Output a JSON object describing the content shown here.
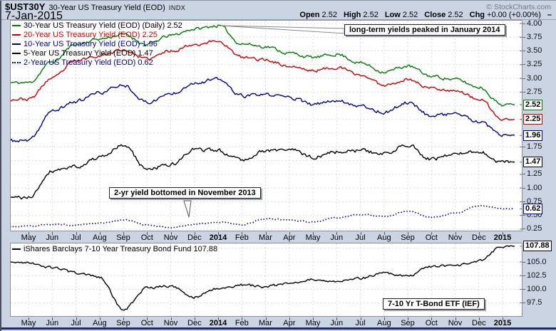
{
  "header": {
    "symbol": "$UST30Y",
    "title": "30-Year US Treasury Yield (EOD)",
    "exchange": "INDX",
    "date": "7-Jan-2015",
    "copyright": "© StockCharts.com",
    "quote": [
      {
        "label": "Open",
        "value": "2.52"
      },
      {
        "label": "High",
        "value": "2.52"
      },
      {
        "label": "Low",
        "value": "2.52"
      },
      {
        "label": "Close",
        "value": "2.52"
      },
      {
        "label": "Chg",
        "value": "+0.00 (+0.00%)"
      }
    ],
    "chg_dash": "–"
  },
  "annotations": {
    "peak": "long-term yields peaked in January 2014",
    "bottom": "2-yr yield bottomed in November 2013",
    "etf": "7-10 Yr T-Bond ETF (IEF)"
  },
  "colors": {
    "green": "#007a00",
    "red": "#cc0000",
    "navy": "#000090",
    "black": "#000000",
    "grid": "#d8d8e2",
    "frame": "#8e8e98",
    "outer_bg": "#cbd4e2",
    "plot_bg": "#ffffff",
    "bottom_bar": "#1f2a6e",
    "copyright_gray": "#6e7888"
  },
  "chart_data": [
    {
      "type": "line",
      "title": "US Treasury Yields (EOD) daily, May 2013 - Jan 2015",
      "x_categories": [
        "May",
        "Jun",
        "Jul",
        "Aug",
        "Sep",
        "Oct",
        "Nov",
        "Dec",
        "2014",
        "Feb",
        "Mar",
        "Apr",
        "May",
        "Jun",
        "Jul",
        "Aug",
        "Sep",
        "Oct",
        "Nov",
        "Dec",
        "2015"
      ],
      "ylim": [
        0.21,
        4.065
      ],
      "grid": true,
      "legend_position": "top-left",
      "yticks_plain": [
        "4.00",
        "3.75",
        "3.50",
        "3.25",
        "3.00",
        "2.75",
        "1.75",
        "1.25",
        "1.00",
        "0.75",
        "0.50",
        "0.25"
      ],
      "yticks_boxed": [
        {
          "text": "2.52",
          "color": "#007a00"
        },
        {
          "text": "2.25",
          "color": "#cc0000"
        },
        {
          "text": "1.96",
          "color": "#000090"
        },
        {
          "text": "1.47",
          "color": "#000000"
        },
        {
          "text": "0.62",
          "color": "#000090"
        }
      ],
      "series": [
        {
          "key": "yield-30y",
          "name": "30-Year US Treasury Yield (EOD) (Daily)",
          "last": "2.52",
          "color": "#007a00",
          "legend_color": "#000000",
          "style": "solid",
          "values": [
            2.92,
            3.3,
            3.62,
            3.72,
            3.8,
            3.62,
            3.78,
            3.9,
            3.96,
            3.63,
            3.58,
            3.46,
            3.38,
            3.44,
            3.28,
            3.12,
            3.22,
            3.04,
            2.98,
            2.84,
            2.52
          ]
        },
        {
          "key": "yield-20y",
          "name": "20-Year US Treasury Yield (EOD)",
          "last": "2.25",
          "color": "#cc0000",
          "legend_color": "#cc0000",
          "style": "solid",
          "values": [
            2.62,
            3.0,
            3.32,
            3.42,
            3.52,
            3.35,
            3.5,
            3.62,
            3.68,
            3.38,
            3.34,
            3.22,
            3.14,
            3.2,
            3.06,
            2.88,
            2.98,
            2.82,
            2.78,
            2.62,
            2.25
          ]
        },
        {
          "key": "yield-10y",
          "name": "10-Year US Treasury Yield (EOD)",
          "last": "1.96",
          "color": "#000090",
          "legend_color": "#000090",
          "style": "solid",
          "values": [
            1.86,
            2.4,
            2.58,
            2.74,
            2.88,
            2.56,
            2.72,
            2.92,
            2.98,
            2.68,
            2.7,
            2.66,
            2.52,
            2.6,
            2.5,
            2.38,
            2.56,
            2.32,
            2.36,
            2.2,
            1.96
          ]
        },
        {
          "key": "yield-5y",
          "name": "5-Year US Treasury Yield (EOD)",
          "last": "1.47",
          "color": "#000000",
          "legend_color": "#000000",
          "style": "solid",
          "values": [
            0.82,
            1.32,
            1.4,
            1.55,
            1.78,
            1.35,
            1.42,
            1.7,
            1.68,
            1.52,
            1.68,
            1.7,
            1.56,
            1.66,
            1.68,
            1.62,
            1.8,
            1.52,
            1.62,
            1.66,
            1.47
          ]
        },
        {
          "key": "yield-2y",
          "name": "2-Year US Treasury Yield (EOD)",
          "last": "0.62",
          "color": "#000090",
          "legend_color": "#000090",
          "style": "dotted",
          "values": [
            0.3,
            0.34,
            0.32,
            0.36,
            0.42,
            0.33,
            0.28,
            0.34,
            0.38,
            0.33,
            0.44,
            0.42,
            0.38,
            0.46,
            0.52,
            0.48,
            0.58,
            0.46,
            0.54,
            0.68,
            0.62
          ]
        }
      ]
    },
    {
      "type": "line",
      "title": "iShares Barclays 7-10 Year Treasury Bond Fund",
      "x_categories": [
        "May",
        "Jun",
        "Jul",
        "Aug",
        "Sep",
        "Oct",
        "Nov",
        "Dec",
        "2014",
        "Feb",
        "Mar",
        "Apr",
        "May",
        "Jun",
        "Jul",
        "Aug",
        "Sep",
        "Oct",
        "Nov",
        "Dec",
        "2015"
      ],
      "ylim": [
        94.98,
        108.52
      ],
      "grid": true,
      "legend_position": "top-left",
      "yticks_plain": [
        "105.0",
        "102.5",
        "100.0",
        "97.5"
      ],
      "yticks_boxed": [
        {
          "text": "107.88",
          "color": "#000000"
        }
      ],
      "series": [
        {
          "key": "ief",
          "name": "iShares Barclays 7-10 Year Treasury Bond Fund",
          "last": "107.88",
          "color": "#000000",
          "legend_color": "#000000",
          "style": "solid",
          "values": [
            104.9,
            104.0,
            103.0,
            102.2,
            96.3,
            100.3,
            100.6,
            98.6,
            100.2,
            100.8,
            100.5,
            101.0,
            101.8,
            101.5,
            102.0,
            103.0,
            102.4,
            104.1,
            104.3,
            105.1,
            107.88
          ]
        }
      ]
    }
  ]
}
